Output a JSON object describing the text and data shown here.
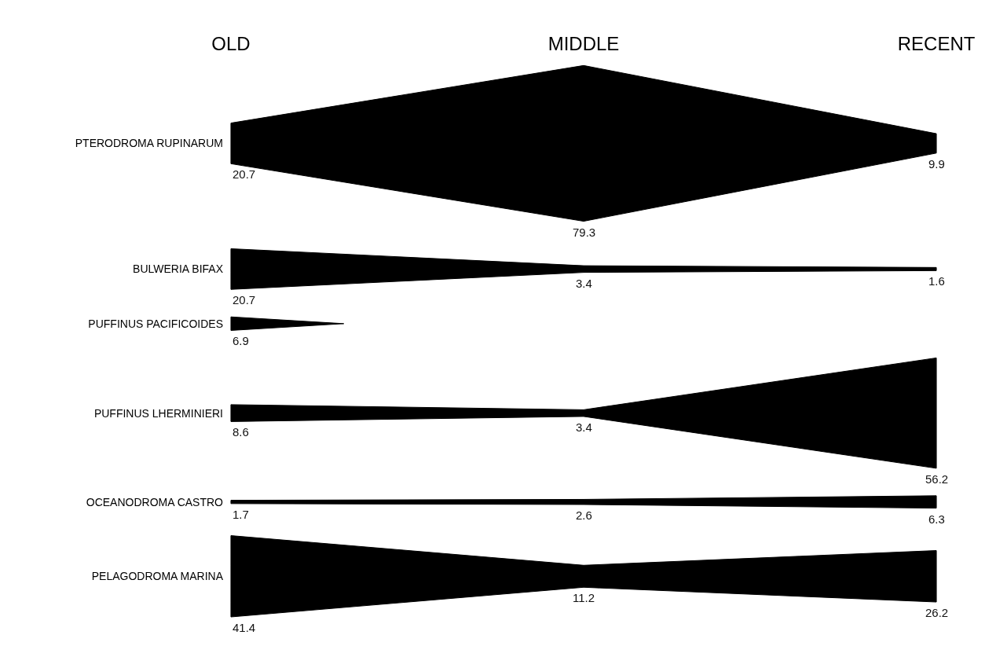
{
  "chart_data": {
    "type": "other",
    "categories": [
      "OLD",
      "MIDDLE",
      "RECENT"
    ],
    "series": [
      {
        "name": "PTERODROMA RUPINARUM",
        "color": "#000000",
        "values": [
          20.7,
          79.3,
          9.9
        ]
      },
      {
        "name": "BULWERIA BIFAX",
        "color": "#000000",
        "values": [
          20.7,
          3.4,
          1.6
        ]
      },
      {
        "name": "PUFFINUS PACIFICOIDES",
        "color": "#000000",
        "values": [
          6.9,
          null,
          null
        ]
      },
      {
        "name": "PUFFINUS LHERMINIERI",
        "color": "#000000",
        "values": [
          8.6,
          3.4,
          56.2
        ]
      },
      {
        "name": "OCEANODROMA CASTRO",
        "color": "#000000",
        "values": [
          1.7,
          2.6,
          6.3
        ]
      },
      {
        "name": "PELAGODROMA MARINA",
        "color": "#000000",
        "values": [
          41.4,
          11.2,
          26.2
        ]
      }
    ],
    "data_labels": true
  }
}
